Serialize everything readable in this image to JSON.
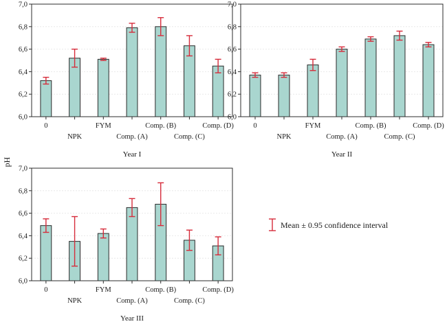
{
  "ylabel": "pH",
  "legend_label": "Mean ± 0.95 confidence interval",
  "colors": {
    "bar": "#a9d6cf",
    "error_bar": "#d62b3a",
    "frame": "#2b2b2b"
  },
  "chart_data": [
    {
      "type": "bar",
      "title": "Year I",
      "categories": [
        "0",
        "NPK",
        "FYM",
        "Comp. (A)",
        "Comp. (B)",
        "Comp. (C)",
        "Comp. (D)"
      ],
      "values": [
        6.32,
        6.52,
        6.51,
        6.79,
        6.8,
        6.63,
        6.45
      ],
      "ci_low": [
        6.29,
        6.44,
        6.5,
        6.75,
        6.72,
        6.54,
        6.39
      ],
      "ci_high": [
        6.35,
        6.6,
        6.52,
        6.83,
        6.88,
        6.72,
        6.51
      ],
      "ylim": [
        6.0,
        7.0
      ],
      "yticks": [
        "6,0",
        "6,2",
        "6,4",
        "6,6",
        "6,8",
        "7,0"
      ],
      "grid": true
    },
    {
      "type": "bar",
      "title": "Year II",
      "categories": [
        "0",
        "NPK",
        "FYM",
        "Comp. (A)",
        "Comp. (B)",
        "Comp. (C)",
        "Comp. (D)"
      ],
      "values": [
        6.37,
        6.37,
        6.46,
        6.6,
        6.69,
        6.72,
        6.64
      ],
      "ci_low": [
        6.35,
        6.35,
        6.41,
        6.58,
        6.67,
        6.68,
        6.62
      ],
      "ci_high": [
        6.39,
        6.39,
        6.51,
        6.62,
        6.71,
        6.76,
        6.66
      ],
      "ylim": [
        6.0,
        7.0
      ],
      "yticks": [
        "6,0",
        "6,2",
        "6,4",
        "6,6",
        "6,8",
        "7,0"
      ],
      "grid": true
    },
    {
      "type": "bar",
      "title": "Year III",
      "categories": [
        "0",
        "NPK",
        "FYM",
        "Comp. (A)",
        "Comp. (B)",
        "Comp. (C)",
        "Comp. (D)"
      ],
      "values": [
        6.49,
        6.35,
        6.42,
        6.65,
        6.68,
        6.36,
        6.31
      ],
      "ci_low": [
        6.43,
        6.13,
        6.38,
        6.57,
        6.49,
        6.27,
        6.23
      ],
      "ci_high": [
        6.55,
        6.57,
        6.46,
        6.73,
        6.87,
        6.45,
        6.39
      ],
      "ylim": [
        6.0,
        7.0
      ],
      "yticks": [
        "6,0",
        "6,2",
        "6,4",
        "6,6",
        "6,8",
        "7,0"
      ],
      "grid": true
    }
  ]
}
